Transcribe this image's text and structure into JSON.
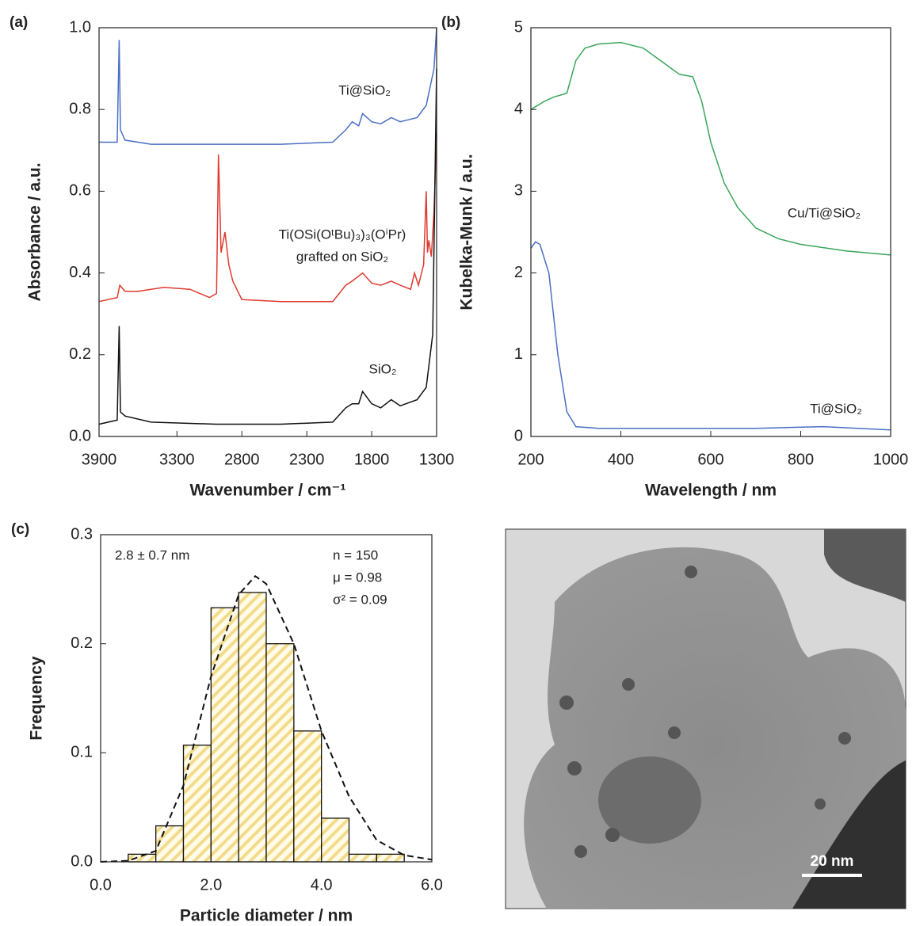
{
  "chart_data": [
    {
      "type": "line",
      "panel_label": "(a)",
      "xlabel": "Wavenumber / cm⁻¹",
      "ylabel": "Absorbance / a.u.",
      "xlim": [
        3900,
        1300
      ],
      "xticks": [
        3900,
        3300,
        2800,
        2300,
        1800,
        1300
      ],
      "ylim": [
        0,
        1
      ],
      "yticks": [
        {
          "value": 0,
          "label": "0.0"
        },
        0.2,
        0.4,
        0.6,
        0.8,
        {
          "value": 1,
          "label": "1.0"
        }
      ],
      "series": [
        {
          "name": [
            "Ti@SiO₂"
          ],
          "color": "#4a6fc4",
          "x": [
            3900,
            3760,
            3745,
            3735,
            3700,
            3500,
            3000,
            2500,
            2100,
            2000,
            1950,
            1900,
            1870,
            1800,
            1730,
            1650,
            1580,
            1450,
            1380,
            1320,
            1300
          ],
          "values": [
            0.72,
            0.72,
            0.97,
            0.75,
            0.725,
            0.715,
            0.715,
            0.715,
            0.72,
            0.75,
            0.77,
            0.76,
            0.79,
            0.77,
            0.765,
            0.78,
            0.77,
            0.78,
            0.81,
            0.9,
            1.0
          ]
        },
        {
          "name": [
            "Ti(OSi(OᵗBu)₃)₃(OⁱPr)",
            "grafted on SiO₂"
          ],
          "color": "#e03a2f",
          "x": [
            3900,
            3760,
            3740,
            3700,
            3600,
            3400,
            3200,
            3050,
            2995,
            2980,
            2960,
            2930,
            2900,
            2870,
            2800,
            2500,
            2100,
            2000,
            1950,
            1870,
            1800,
            1730,
            1650,
            1580,
            1500,
            1470,
            1440,
            1400,
            1380,
            1370,
            1360,
            1340,
            1320,
            1300
          ],
          "values": [
            0.33,
            0.34,
            0.37,
            0.355,
            0.355,
            0.365,
            0.36,
            0.34,
            0.35,
            0.69,
            0.45,
            0.5,
            0.42,
            0.38,
            0.335,
            0.33,
            0.33,
            0.37,
            0.38,
            0.4,
            0.375,
            0.37,
            0.38,
            0.37,
            0.36,
            0.4,
            0.37,
            0.42,
            0.6,
            0.45,
            0.48,
            0.44,
            0.55,
            0.74
          ]
        },
        {
          "name": [
            "SiO₂"
          ],
          "color": "#111111",
          "x": [
            3900,
            3760,
            3745,
            3735,
            3700,
            3500,
            3000,
            2500,
            2100,
            2000,
            1950,
            1900,
            1870,
            1800,
            1730,
            1650,
            1580,
            1450,
            1380,
            1330,
            1300
          ],
          "values": [
            0.03,
            0.04,
            0.27,
            0.06,
            0.05,
            0.035,
            0.03,
            0.03,
            0.035,
            0.07,
            0.08,
            0.08,
            0.11,
            0.08,
            0.07,
            0.09,
            0.075,
            0.09,
            0.12,
            0.25,
            0.9
          ]
        }
      ]
    },
    {
      "type": "line",
      "panel_label": "(b)",
      "xlabel": "Wavelength / nm",
      "ylabel": "Kubelka-Munk / a.u.",
      "xlim": [
        200,
        1000
      ],
      "xticks": [
        200,
        400,
        600,
        800,
        1000
      ],
      "ylim": [
        0,
        5
      ],
      "yticks": [
        0,
        1,
        2,
        3,
        4,
        5
      ],
      "series": [
        {
          "name": [
            "Cu/Ti@SiO₂"
          ],
          "color": "#3aa55a",
          "x": [
            200,
            230,
            250,
            280,
            300,
            320,
            350,
            400,
            450,
            500,
            530,
            560,
            580,
            600,
            630,
            660,
            700,
            750,
            800,
            900,
            1000
          ],
          "values": [
            4.0,
            4.1,
            4.15,
            4.2,
            4.6,
            4.75,
            4.8,
            4.82,
            4.75,
            4.55,
            4.43,
            4.4,
            4.1,
            3.6,
            3.1,
            2.8,
            2.55,
            2.42,
            2.35,
            2.27,
            2.22
          ]
        },
        {
          "name": [
            "Ti@SiO₂"
          ],
          "color": "#4a6fc4",
          "x": [
            200,
            210,
            220,
            240,
            260,
            280,
            300,
            350,
            500,
            700,
            850,
            1000
          ],
          "values": [
            2.3,
            2.38,
            2.35,
            2.0,
            1.0,
            0.3,
            0.12,
            0.1,
            0.1,
            0.1,
            0.12,
            0.08
          ]
        }
      ]
    },
    {
      "type": "histogram",
      "panel_label": "(c)",
      "xlabel": "Particle diameter / nm",
      "ylabel": "Frequency",
      "xlim": [
        0,
        6
      ],
      "xticks": [
        {
          "value": 0,
          "label": "0.0"
        },
        {
          "value": 2,
          "label": "2.0"
        },
        {
          "value": 4,
          "label": "4.0"
        },
        {
          "value": 6,
          "label": "6.0"
        }
      ],
      "ylim": [
        0,
        0.3
      ],
      "yticks": [
        {
          "value": 0,
          "label": "0.0"
        },
        0.1,
        0.2,
        0.3
      ],
      "bins": [
        0.5,
        1.0,
        1.5,
        2.0,
        2.5,
        3.0,
        3.5,
        4.0,
        4.5,
        5.0,
        5.5
      ],
      "values": [
        0.007,
        0.033,
        0.107,
        0.233,
        0.247,
        0.2,
        0.12,
        0.04,
        0.007,
        0.007
      ],
      "color": "#f2dc8c",
      "fit": {
        "x": [
          0,
          0.5,
          1.0,
          1.5,
          2.0,
          2.5,
          2.8,
          3.0,
          3.5,
          4.0,
          4.5,
          5.0,
          5.5,
          6.0
        ],
        "values": [
          0,
          0.001,
          0.01,
          0.07,
          0.17,
          0.245,
          0.262,
          0.255,
          0.2,
          0.12,
          0.06,
          0.02,
          0.006,
          0.002
        ]
      },
      "annotations": [
        "2.8 ± 0.7 nm",
        "n  = 150",
        "μ  = 0.98",
        "σ² = 0.09"
      ]
    }
  ],
  "micrograph": {
    "scale_bar": "20 nm"
  }
}
